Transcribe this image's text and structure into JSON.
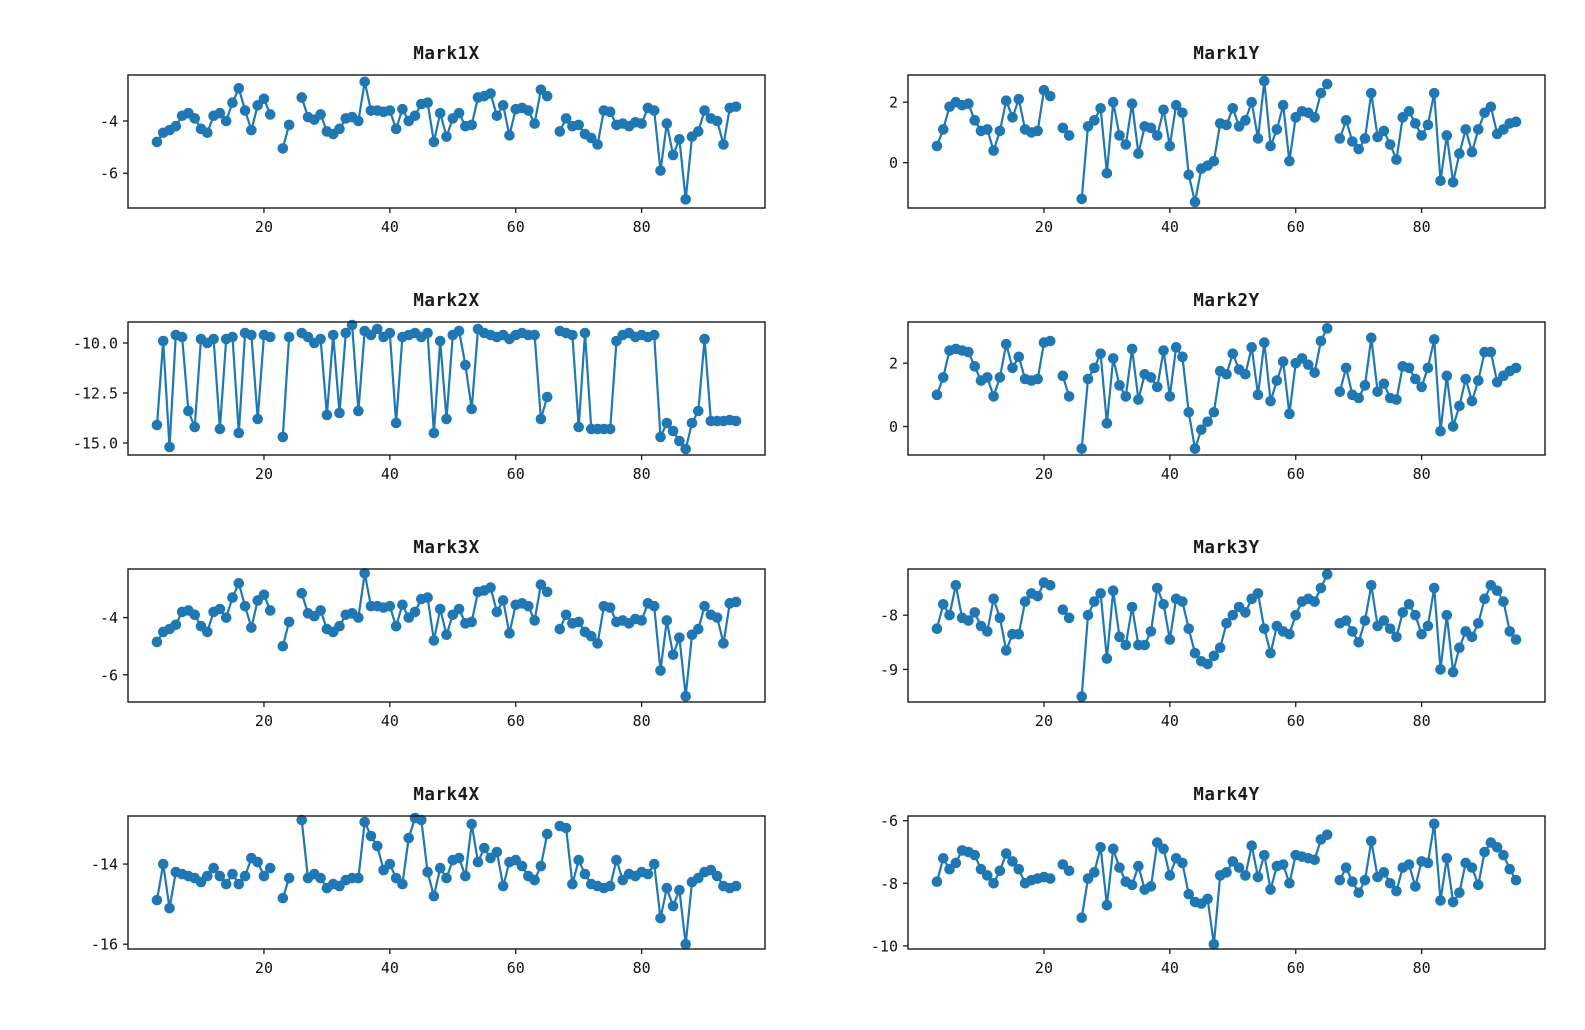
{
  "figure": {
    "background": "#ffffff",
    "series_color": "#1f77b4",
    "axis_color": "#1a1a1a"
  },
  "chart_data": [
    {
      "type": "line",
      "title": "Mark1X",
      "xlabel": "",
      "ylabel": "",
      "grid": false,
      "legend": null,
      "marker": "circle",
      "x_start": 3,
      "x_step": 1,
      "x_end": 95,
      "gaps_at_x": [
        22,
        25,
        66
      ],
      "xlim": [
        -1.6,
        99.6
      ],
      "xticks": [
        20,
        40,
        60,
        80
      ],
      "xtick_labels": [
        "20",
        "40",
        "60",
        "80"
      ],
      "ylim": [
        -7.33,
        -2.24
      ],
      "ytick_values": [
        -6,
        -4
      ],
      "ytick_labels": [
        "-6",
        "-4"
      ],
      "y": [
        -4.8,
        -4.45,
        -4.35,
        -4.2,
        -3.8,
        -3.7,
        -3.9,
        -4.3,
        -4.45,
        -3.8,
        -3.7,
        -4.0,
        -3.3,
        -2.75,
        -3.6,
        -4.35,
        -3.4,
        -3.15,
        -3.75,
        null,
        -5.05,
        -4.15,
        null,
        -3.1,
        -3.85,
        -3.95,
        -3.75,
        -4.4,
        -4.5,
        -4.3,
        -3.9,
        -3.85,
        -4.0,
        -2.5,
        -3.6,
        -3.6,
        -3.65,
        -3.6,
        -4.3,
        -3.55,
        -4.0,
        -3.8,
        -3.35,
        -3.3,
        -4.8,
        -3.7,
        -4.6,
        -3.9,
        -3.7,
        -4.2,
        -4.15,
        -3.1,
        -3.05,
        -2.95,
        -3.8,
        -3.4,
        -4.55,
        -3.55,
        -3.5,
        -3.6,
        -4.1,
        -2.8,
        -3.05,
        null,
        -4.4,
        -3.9,
        -4.2,
        -4.15,
        -4.5,
        -4.65,
        -4.9,
        -3.6,
        -3.65,
        -4.15,
        -4.1,
        -4.2,
        -4.05,
        -4.1,
        -3.5,
        -3.6,
        -5.9,
        -4.1,
        -5.3,
        -4.7,
        -7.0,
        -4.6,
        -4.4,
        -3.6,
        -3.9,
        -4.0,
        -4.9,
        -3.5,
        -3.45
      ]
    },
    {
      "type": "line",
      "title": "Mark1Y",
      "xlabel": "",
      "ylabel": "",
      "grid": false,
      "legend": null,
      "marker": "circle",
      "x_start": 3,
      "x_step": 1,
      "x_end": 95,
      "gaps_at_x": [
        22,
        25,
        66
      ],
      "xlim": [
        -1.6,
        99.6
      ],
      "xticks": [
        20,
        40,
        60,
        80
      ],
      "xtick_labels": [
        "20",
        "40",
        "60",
        "80"
      ],
      "ylim": [
        -1.5,
        2.9
      ],
      "ytick_values": [
        0,
        2
      ],
      "ytick_labels": [
        "0",
        "2"
      ],
      "y": [
        0.55,
        1.1,
        1.85,
        2.0,
        1.9,
        1.95,
        1.4,
        1.05,
        1.1,
        0.4,
        1.05,
        2.05,
        1.5,
        2.1,
        1.1,
        1.0,
        1.05,
        2.4,
        2.2,
        null,
        1.15,
        0.9,
        null,
        -1.2,
        1.2,
        1.4,
        1.8,
        -0.35,
        2.0,
        0.9,
        0.6,
        1.95,
        0.3,
        1.2,
        1.15,
        0.9,
        1.75,
        0.55,
        1.9,
        1.65,
        -0.4,
        -1.3,
        -0.2,
        -0.1,
        0.05,
        1.3,
        1.25,
        1.8,
        1.2,
        1.4,
        2.0,
        0.8,
        2.7,
        0.55,
        1.1,
        1.9,
        0.05,
        1.5,
        1.7,
        1.65,
        1.5,
        2.3,
        2.6,
        null,
        0.8,
        1.4,
        0.7,
        0.45,
        0.8,
        2.3,
        0.85,
        1.05,
        0.6,
        0.1,
        1.5,
        1.7,
        1.3,
        0.9,
        1.25,
        2.3,
        -0.6,
        0.9,
        -0.65,
        0.3,
        1.1,
        0.35,
        1.1,
        1.65,
        1.85,
        0.95,
        1.1,
        1.3,
        1.35
      ]
    },
    {
      "type": "line",
      "title": "Mark2X",
      "xlabel": "",
      "ylabel": "",
      "grid": false,
      "legend": null,
      "marker": "circle",
      "x_start": 3,
      "x_step": 1,
      "x_end": 95,
      "gaps_at_x": [
        22,
        25,
        66
      ],
      "xlim": [
        -1.6,
        99.6
      ],
      "xticks": [
        20,
        40,
        60,
        80
      ],
      "xtick_labels": [
        "20",
        "40",
        "60",
        "80"
      ],
      "ylim": [
        -15.6,
        -8.95
      ],
      "ytick_values": [
        -15.0,
        -12.5,
        -10.0
      ],
      "ytick_labels": [
        "-15.0",
        "-12.5",
        "-10.0"
      ],
      "y": [
        -14.1,
        -9.9,
        -15.2,
        -9.6,
        -9.7,
        -13.4,
        -14.2,
        -9.8,
        -10.0,
        -9.8,
        -14.3,
        -9.8,
        -9.7,
        -14.5,
        -9.5,
        -9.6,
        -13.8,
        -9.6,
        -9.7,
        null,
        -14.7,
        -9.7,
        null,
        -9.5,
        -9.7,
        -10.0,
        -9.8,
        -13.6,
        -9.6,
        -13.5,
        -9.5,
        -9.1,
        -13.4,
        -9.4,
        -9.6,
        -9.3,
        -9.7,
        -9.5,
        -14.0,
        -9.7,
        -9.6,
        -9.5,
        -9.7,
        -9.5,
        -14.5,
        -9.9,
        -13.8,
        -9.6,
        -9.4,
        -11.1,
        -13.3,
        -9.3,
        -9.5,
        -9.6,
        -9.7,
        -9.6,
        -9.8,
        -9.6,
        -9.5,
        -9.6,
        -9.6,
        -13.8,
        -12.7,
        null,
        -9.4,
        -9.5,
        -9.6,
        -14.2,
        -9.5,
        -14.3,
        -14.3,
        -14.3,
        -14.3,
        -9.9,
        -9.6,
        -9.5,
        -9.7,
        -9.6,
        -9.7,
        -9.6,
        -14.7,
        -14.0,
        -14.4,
        -14.9,
        -15.3,
        -14.0,
        -13.4,
        -9.8,
        -13.9,
        -13.9,
        -13.9,
        -13.85,
        -13.9
      ]
    },
    {
      "type": "line",
      "title": "Mark2Y",
      "xlabel": "",
      "ylabel": "",
      "grid": false,
      "legend": null,
      "marker": "circle",
      "x_start": 3,
      "x_step": 1,
      "x_end": 95,
      "gaps_at_x": [
        22,
        25,
        66
      ],
      "xlim": [
        -1.6,
        99.6
      ],
      "xticks": [
        20,
        40,
        60,
        80
      ],
      "xtick_labels": [
        "20",
        "40",
        "60",
        "80"
      ],
      "ylim": [
        -0.9,
        3.3
      ],
      "ytick_values": [
        0,
        2
      ],
      "ytick_labels": [
        "0",
        "2"
      ],
      "y": [
        1.0,
        1.55,
        2.4,
        2.45,
        2.4,
        2.35,
        1.9,
        1.45,
        1.55,
        0.95,
        1.55,
        2.6,
        1.85,
        2.2,
        1.5,
        1.45,
        1.5,
        2.65,
        2.7,
        null,
        1.6,
        0.95,
        null,
        -0.7,
        1.5,
        1.85,
        2.3,
        0.1,
        2.15,
        1.3,
        0.95,
        2.45,
        0.85,
        1.65,
        1.55,
        1.25,
        2.4,
        0.95,
        2.5,
        2.2,
        0.45,
        -0.7,
        -0.1,
        0.15,
        0.45,
        1.75,
        1.65,
        2.3,
        1.8,
        1.65,
        2.5,
        1.0,
        2.65,
        0.8,
        1.45,
        2.05,
        0.4,
        2.0,
        2.15,
        1.95,
        1.7,
        2.7,
        3.1,
        null,
        1.1,
        1.85,
        1.0,
        0.9,
        1.3,
        2.8,
        1.1,
        1.35,
        0.9,
        0.85,
        1.9,
        1.85,
        1.5,
        1.25,
        1.85,
        2.75,
        -0.15,
        1.6,
        0.0,
        0.65,
        1.5,
        0.8,
        1.45,
        2.35,
        2.35,
        1.4,
        1.6,
        1.75,
        1.85
      ]
    },
    {
      "type": "line",
      "title": "Mark3X",
      "xlabel": "",
      "ylabel": "",
      "grid": false,
      "legend": null,
      "marker": "circle",
      "x_start": 3,
      "x_step": 1,
      "x_end": 95,
      "gaps_at_x": [
        22,
        25,
        66
      ],
      "xlim": [
        -1.6,
        99.6
      ],
      "xticks": [
        20,
        40,
        60,
        80
      ],
      "xtick_labels": [
        "20",
        "40",
        "60",
        "80"
      ],
      "ylim": [
        -6.95,
        -2.3
      ],
      "ytick_values": [
        -6,
        -4
      ],
      "ytick_labels": [
        "-6",
        "-4"
      ],
      "y": [
        -4.85,
        -4.5,
        -4.4,
        -4.25,
        -3.8,
        -3.75,
        -3.9,
        -4.3,
        -4.5,
        -3.8,
        -3.7,
        -4.0,
        -3.3,
        -2.8,
        -3.6,
        -4.35,
        -3.4,
        -3.2,
        -3.75,
        null,
        -5.0,
        -4.15,
        null,
        -3.15,
        -3.85,
        -3.95,
        -3.75,
        -4.4,
        -4.5,
        -4.3,
        -3.9,
        -3.85,
        -4.0,
        -2.45,
        -3.6,
        -3.6,
        -3.65,
        -3.6,
        -4.3,
        -3.55,
        -4.0,
        -3.8,
        -3.35,
        -3.3,
        -4.8,
        -3.7,
        -4.6,
        -3.9,
        -3.7,
        -4.2,
        -4.15,
        -3.1,
        -3.05,
        -2.95,
        -3.8,
        -3.4,
        -4.55,
        -3.55,
        -3.5,
        -3.6,
        -4.1,
        -2.85,
        -3.1,
        null,
        -4.4,
        -3.9,
        -4.2,
        -4.15,
        -4.5,
        -4.65,
        -4.9,
        -3.6,
        -3.65,
        -4.15,
        -4.1,
        -4.2,
        -4.05,
        -4.1,
        -3.5,
        -3.6,
        -5.85,
        -4.1,
        -5.3,
        -4.7,
        -6.75,
        -4.6,
        -4.4,
        -3.6,
        -3.9,
        -4.0,
        -4.9,
        -3.5,
        -3.45
      ]
    },
    {
      "type": "line",
      "title": "Mark3Y",
      "xlabel": "",
      "ylabel": "",
      "grid": false,
      "legend": null,
      "marker": "circle",
      "x_start": 3,
      "x_step": 1,
      "x_end": 95,
      "gaps_at_x": [
        22,
        25,
        66
      ],
      "xlim": [
        -1.6,
        99.6
      ],
      "xticks": [
        20,
        40,
        60,
        80
      ],
      "xtick_labels": [
        "20",
        "40",
        "60",
        "80"
      ],
      "ylim": [
        -9.6,
        -7.15
      ],
      "ytick_values": [
        -9,
        -8
      ],
      "ytick_labels": [
        "-9",
        "-8"
      ],
      "y": [
        -8.25,
        -7.8,
        -8.0,
        -7.45,
        -8.05,
        -8.1,
        -7.95,
        -8.2,
        -8.3,
        -7.7,
        -8.05,
        -8.65,
        -8.35,
        -8.35,
        -7.75,
        -7.6,
        -7.65,
        -7.4,
        -7.45,
        null,
        -7.9,
        -8.05,
        null,
        -9.5,
        -8.0,
        -7.75,
        -7.6,
        -8.8,
        -7.55,
        -8.4,
        -8.55,
        -7.85,
        -8.55,
        -8.55,
        -8.3,
        -7.5,
        -7.8,
        -8.45,
        -7.7,
        -7.75,
        -8.25,
        -8.7,
        -8.85,
        -8.9,
        -8.75,
        -8.6,
        -8.15,
        -8.0,
        -7.85,
        -7.95,
        -7.7,
        -7.6,
        -8.25,
        -8.7,
        -8.2,
        -8.3,
        -8.35,
        -8.0,
        -7.75,
        -7.7,
        -7.75,
        -7.5,
        -7.25,
        null,
        -8.15,
        -8.1,
        -8.3,
        -8.5,
        -8.1,
        -7.45,
        -8.2,
        -8.1,
        -8.25,
        -8.4,
        -7.95,
        -7.8,
        -8.0,
        -8.35,
        -8.2,
        -7.5,
        -9.0,
        -8.0,
        -9.05,
        -8.6,
        -8.3,
        -8.4,
        -8.15,
        -7.7,
        -7.45,
        -7.55,
        -7.75,
        -8.3,
        -8.45
      ]
    },
    {
      "type": "line",
      "title": "Mark4X",
      "xlabel": "",
      "ylabel": "",
      "grid": false,
      "legend": null,
      "marker": "circle",
      "x_start": 3,
      "x_step": 1,
      "x_end": 95,
      "gaps_at_x": [
        22,
        25,
        66
      ],
      "xlim": [
        -1.6,
        99.6
      ],
      "xticks": [
        20,
        40,
        60,
        80
      ],
      "xtick_labels": [
        "20",
        "40",
        "60",
        "80"
      ],
      "ylim": [
        -16.12,
        -12.8
      ],
      "ytick_values": [
        -16,
        -14
      ],
      "ytick_labels": [
        "-16",
        "-14"
      ],
      "y": [
        -14.9,
        -14.0,
        -15.1,
        -14.2,
        -14.25,
        -14.3,
        -14.35,
        -14.45,
        -14.3,
        -14.1,
        -14.3,
        -14.5,
        -14.25,
        -14.5,
        -14.3,
        -13.85,
        -13.95,
        -14.3,
        -14.1,
        null,
        -14.85,
        -14.35,
        null,
        -12.9,
        -14.35,
        -14.25,
        -14.35,
        -14.6,
        -14.5,
        -14.55,
        -14.4,
        -14.35,
        -14.35,
        -12.95,
        -13.3,
        -13.55,
        -14.15,
        -14.0,
        -14.35,
        -14.5,
        -13.35,
        -12.85,
        -12.9,
        -14.2,
        -14.8,
        -14.1,
        -14.35,
        -13.9,
        -13.85,
        -14.3,
        -13.0,
        -13.95,
        -13.6,
        -13.85,
        -13.7,
        -14.55,
        -13.95,
        -13.9,
        -14.05,
        -14.3,
        -14.4,
        -14.05,
        -13.25,
        null,
        -13.05,
        -13.1,
        -14.5,
        -13.9,
        -14.25,
        -14.5,
        -14.55,
        -14.6,
        -14.55,
        -13.9,
        -14.4,
        -14.25,
        -14.3,
        -14.2,
        -14.25,
        -14.0,
        -15.35,
        -14.6,
        -15.05,
        -14.65,
        -16.0,
        -14.45,
        -14.35,
        -14.2,
        -14.15,
        -14.3,
        -14.55,
        -14.6,
        -14.55
      ]
    },
    {
      "type": "line",
      "title": "Mark4Y",
      "xlabel": "",
      "ylabel": "",
      "grid": false,
      "legend": null,
      "marker": "circle",
      "x_start": 3,
      "x_step": 1,
      "x_end": 95,
      "gaps_at_x": [
        22,
        25,
        66
      ],
      "xlim": [
        -1.6,
        99.6
      ],
      "xticks": [
        20,
        40,
        60,
        80
      ],
      "xtick_labels": [
        "20",
        "40",
        "60",
        "80"
      ],
      "ylim": [
        -10.1,
        -5.85
      ],
      "ytick_values": [
        -10,
        -8,
        -6
      ],
      "ytick_labels": [
        "-10",
        "-8",
        "-6"
      ],
      "y": [
        -7.95,
        -7.2,
        -7.55,
        -7.35,
        -6.95,
        -7.0,
        -7.1,
        -7.55,
        -7.75,
        -8.0,
        -7.6,
        -7.05,
        -7.3,
        -7.55,
        -8.0,
        -7.9,
        -7.85,
        -7.8,
        -7.85,
        null,
        -7.4,
        -7.6,
        null,
        -9.1,
        -7.85,
        -7.65,
        -6.85,
        -8.7,
        -6.9,
        -7.5,
        -7.95,
        -8.05,
        -7.45,
        -8.2,
        -8.1,
        -6.7,
        -6.9,
        -7.75,
        -7.2,
        -7.35,
        -8.35,
        -8.6,
        -8.65,
        -8.5,
        -9.95,
        -7.75,
        -7.65,
        -7.3,
        -7.5,
        -7.75,
        -6.8,
        -7.8,
        -7.1,
        -8.2,
        -7.45,
        -7.4,
        -8.0,
        -7.1,
        -7.15,
        -7.2,
        -7.25,
        -6.6,
        -6.45,
        null,
        -7.9,
        -7.5,
        -7.95,
        -8.3,
        -7.9,
        -6.65,
        -7.8,
        -7.65,
        -8.0,
        -8.25,
        -7.5,
        -7.4,
        -8.1,
        -7.3,
        -7.35,
        -6.1,
        -8.55,
        -7.2,
        -8.6,
        -8.3,
        -7.35,
        -7.5,
        -8.05,
        -7.0,
        -6.7,
        -6.85,
        -7.1,
        -7.55,
        -7.9
      ]
    }
  ]
}
